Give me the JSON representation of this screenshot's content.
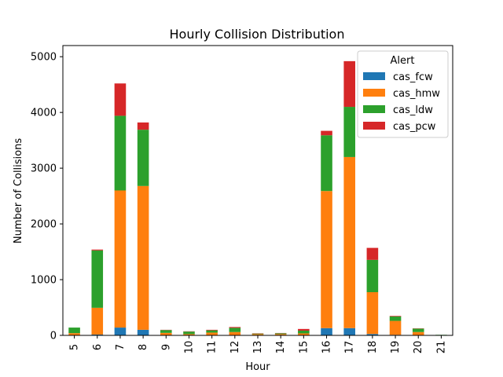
{
  "chart_data": {
    "type": "bar",
    "stacked": true,
    "title": "Hourly Collision Distribution",
    "xlabel": "Hour",
    "ylabel": "Number of Collisions",
    "ylim": [
      0,
      5200
    ],
    "yticks": [
      0,
      1000,
      2000,
      3000,
      4000,
      5000
    ],
    "grid": false,
    "categories": [
      "5",
      "6",
      "7",
      "8",
      "9",
      "10",
      "11",
      "12",
      "13",
      "14",
      "15",
      "16",
      "17",
      "18",
      "19",
      "20",
      "21"
    ],
    "legend": {
      "title": "Alert",
      "placement": "top-right"
    },
    "series": [
      {
        "name": "cas_fcw",
        "color": "#1f77b4",
        "values": [
          5,
          15,
          140,
          100,
          5,
          3,
          5,
          5,
          3,
          3,
          5,
          130,
          130,
          25,
          10,
          5,
          1
        ]
      },
      {
        "name": "cas_hmw",
        "color": "#ff7f0e",
        "values": [
          35,
          480,
          2460,
          2580,
          40,
          20,
          45,
          55,
          20,
          20,
          30,
          2460,
          3070,
          750,
          250,
          55,
          4
        ]
      },
      {
        "name": "cas_ldw",
        "color": "#2ca02c",
        "values": [
          100,
          1030,
          1340,
          1010,
          50,
          45,
          40,
          75,
          10,
          15,
          50,
          1000,
          900,
          580,
          80,
          60,
          5
        ]
      },
      {
        "name": "cas_pcw",
        "color": "#d62728",
        "values": [
          0,
          15,
          580,
          130,
          5,
          5,
          10,
          15,
          5,
          5,
          30,
          80,
          820,
          215,
          10,
          5,
          0
        ]
      }
    ]
  }
}
